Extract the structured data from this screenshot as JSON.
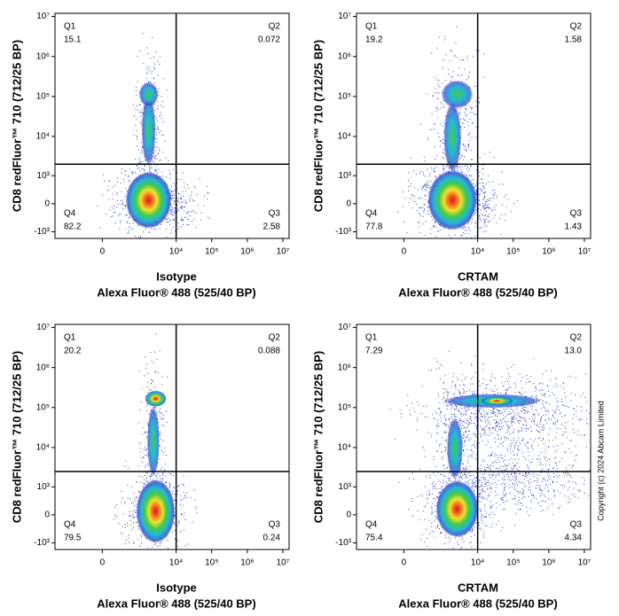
{
  "copyright": "Copyright (c) 2024 Abcam Limited",
  "chart_data": [
    {
      "type": "density",
      "ylabel": "CD8 redFluor™ 710 (712/25 BP)",
      "xlabel": [
        "Isotype",
        "Alexa Fluor® 488  (525/40 BP)"
      ],
      "scale": "biexponential",
      "xlim": [
        -1800,
        15000000
      ],
      "ylim": [
        -1500,
        12000000
      ],
      "xticks": [
        0,
        {
          "value": 10000,
          "label": "10⁴"
        },
        {
          "value": 100000,
          "label": "10⁵"
        },
        {
          "value": 1000000,
          "label": "10⁶"
        },
        {
          "value": 10000000,
          "label": "10⁷"
        }
      ],
      "yticks": [
        {
          "value": -1000,
          "label": "-10³"
        },
        0,
        {
          "value": 1000,
          "label": "10³"
        },
        {
          "value": 10000,
          "label": "10⁴"
        },
        {
          "value": 100000,
          "label": "10⁵"
        },
        {
          "value": 1000000,
          "label": "10⁶"
        },
        {
          "value": 10000000,
          "label": "10⁷"
        }
      ],
      "gates": {
        "x": 10000,
        "y": 2000
      },
      "quadrants": {
        "names": [
          "Q1",
          "Q2",
          "Q3",
          "Q4"
        ],
        "values": [
          15.1,
          0.072,
          2.58,
          82.2
        ],
        "value_labels": [
          "15.1",
          "0.072",
          "2.58",
          "82.2"
        ]
      }
    },
    {
      "type": "density",
      "ylabel": "CD8 redFluor™ 710 (712/25 BP)",
      "xlabel": [
        "CRTAM",
        "Alexa Fluor® 488  (525/40 BP)"
      ],
      "scale": "biexponential",
      "xlim": [
        -1800,
        15000000
      ],
      "ylim": [
        -1500,
        12000000
      ],
      "xticks": [
        0,
        {
          "value": 10000,
          "label": "10⁴"
        },
        {
          "value": 100000,
          "label": "10⁵"
        },
        {
          "value": 1000000,
          "label": "10⁶"
        },
        {
          "value": 10000000,
          "label": "10⁷"
        }
      ],
      "yticks": [
        {
          "value": -1000,
          "label": "-10³"
        },
        0,
        {
          "value": 1000,
          "label": "10³"
        },
        {
          "value": 10000,
          "label": "10⁴"
        },
        {
          "value": 100000,
          "label": "10⁵"
        },
        {
          "value": 1000000,
          "label": "10⁶"
        },
        {
          "value": 10000000,
          "label": "10⁷"
        }
      ],
      "gates": {
        "x": 10000,
        "y": 2000
      },
      "quadrants": {
        "names": [
          "Q1",
          "Q2",
          "Q3",
          "Q4"
        ],
        "values": [
          19.2,
          1.58,
          1.43,
          77.8
        ],
        "value_labels": [
          "19.2",
          "1.58",
          "1.43",
          "77.8"
        ]
      }
    },
    {
      "type": "density",
      "ylabel": "CD8 redFluor™ 710 (712/25 BP)",
      "xlabel": [
        "Isotype",
        "Alexa Fluor® 488  (525/40 BP)"
      ],
      "scale": "biexponential",
      "xlim": [
        -1800,
        15000000
      ],
      "ylim": [
        -1500,
        12000000
      ],
      "xticks": [
        0,
        {
          "value": 10000,
          "label": "10⁴"
        },
        {
          "value": 100000,
          "label": "10⁵"
        },
        {
          "value": 1000000,
          "label": "10⁶"
        },
        {
          "value": 10000000,
          "label": "10⁷"
        }
      ],
      "yticks": [
        {
          "value": -1000,
          "label": "-10³"
        },
        0,
        {
          "value": 1000,
          "label": "10³"
        },
        {
          "value": 10000,
          "label": "10⁴"
        },
        {
          "value": 100000,
          "label": "10⁵"
        },
        {
          "value": 1000000,
          "label": "10⁶"
        },
        {
          "value": 10000000,
          "label": "10⁷"
        }
      ],
      "gates": {
        "x": 10000,
        "y": 2500
      },
      "quadrants": {
        "names": [
          "Q1",
          "Q2",
          "Q3",
          "Q4"
        ],
        "values": [
          20.2,
          0.088,
          0.24,
          79.5
        ],
        "value_labels": [
          "20.2",
          "0.088",
          "0.24",
          "79.5"
        ]
      }
    },
    {
      "type": "density",
      "ylabel": "CD8 redFluor™ 710 (712/25 BP)",
      "xlabel": [
        "CRTAM",
        "Alexa Fluor® 488  (525/40 BP)"
      ],
      "scale": "biexponential",
      "xlim": [
        -1800,
        15000000
      ],
      "ylim": [
        -1500,
        12000000
      ],
      "xticks": [
        0,
        {
          "value": 10000,
          "label": "10⁴"
        },
        {
          "value": 100000,
          "label": "10⁵"
        },
        {
          "value": 1000000,
          "label": "10⁶"
        },
        {
          "value": 10000000,
          "label": "10⁷"
        }
      ],
      "yticks": [
        {
          "value": -1000,
          "label": "-10³"
        },
        0,
        {
          "value": 1000,
          "label": "10³"
        },
        {
          "value": 10000,
          "label": "10⁴"
        },
        {
          "value": 100000,
          "label": "10⁵"
        },
        {
          "value": 1000000,
          "label": "10⁶"
        },
        {
          "value": 10000000,
          "label": "10⁷"
        }
      ],
      "gates": {
        "x": 10000,
        "y": 2500
      },
      "quadrants": {
        "names": [
          "Q1",
          "Q2",
          "Q3",
          "Q4"
        ],
        "values": [
          7.29,
          13.0,
          4.34,
          75.4
        ],
        "value_labels": [
          "7.29",
          "13.0",
          "4.34",
          "75.4"
        ]
      }
    }
  ]
}
